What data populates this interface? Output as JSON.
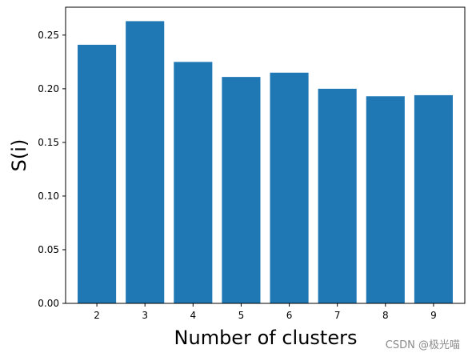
{
  "chart_data": {
    "type": "bar",
    "categories": [
      "2",
      "3",
      "4",
      "5",
      "6",
      "7",
      "8",
      "9"
    ],
    "values": [
      0.241,
      0.263,
      0.225,
      0.211,
      0.215,
      0.2,
      0.193,
      0.194
    ],
    "title": "",
    "xlabel": "Number of clusters",
    "ylabel": "S(i)",
    "ylim": [
      0,
      0.276
    ],
    "yticks": [
      "0.00",
      "0.05",
      "0.10",
      "0.15",
      "0.20",
      "0.25"
    ],
    "grid": false,
    "bar_color": "#1f77b4"
  },
  "watermark": "CSDN @极光喵"
}
